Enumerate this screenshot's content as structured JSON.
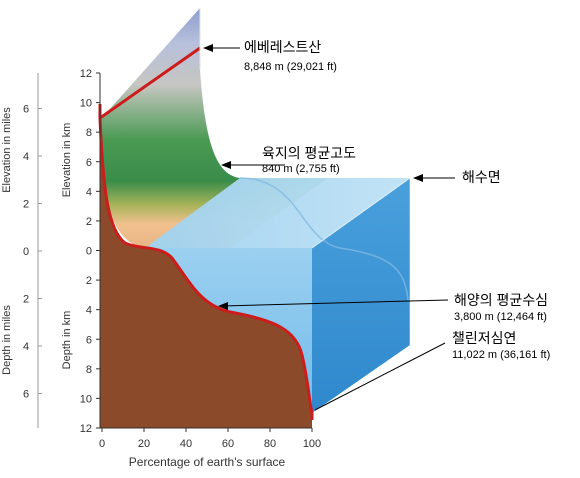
{
  "axes": {
    "x_title": "Percentage of earth's surface",
    "x_ticks": [
      "0",
      "20",
      "40",
      "60",
      "80",
      "100"
    ],
    "km_ticks": [
      "12",
      "10",
      "8",
      "6",
      "4",
      "2",
      "0",
      "2",
      "4",
      "6",
      "8",
      "10",
      "12"
    ],
    "elev_km_title": "Elevation in km",
    "depth_km_title": "Depth in km",
    "elev_miles_title": "Elevation in miles",
    "depth_miles_title": "Depth in miles",
    "mile_ticks": [
      "6",
      "4",
      "2",
      "0",
      "2",
      "4",
      "6"
    ]
  },
  "labels": {
    "everest_name": "에베레스트산",
    "everest_value": "8,848 m (29,021 ft)",
    "land_mean_name": "육지의 평균고도",
    "land_mean_value": "840 m (2,755 ft)",
    "sea_level_name": "해수면",
    "ocean_mean_name": "해양의 평균수심",
    "ocean_mean_value": "3,800 m (12,464 ft)",
    "challenger_name": "챌린저심연",
    "challenger_value": "11,022 m (36,161 ft)"
  },
  "colors": {
    "earth_brown": "#8b4a2a",
    "curve_red": "#cc1c1c",
    "ocean_blue": "#4aa6e0",
    "land_green": "#3f9a4a"
  }
}
